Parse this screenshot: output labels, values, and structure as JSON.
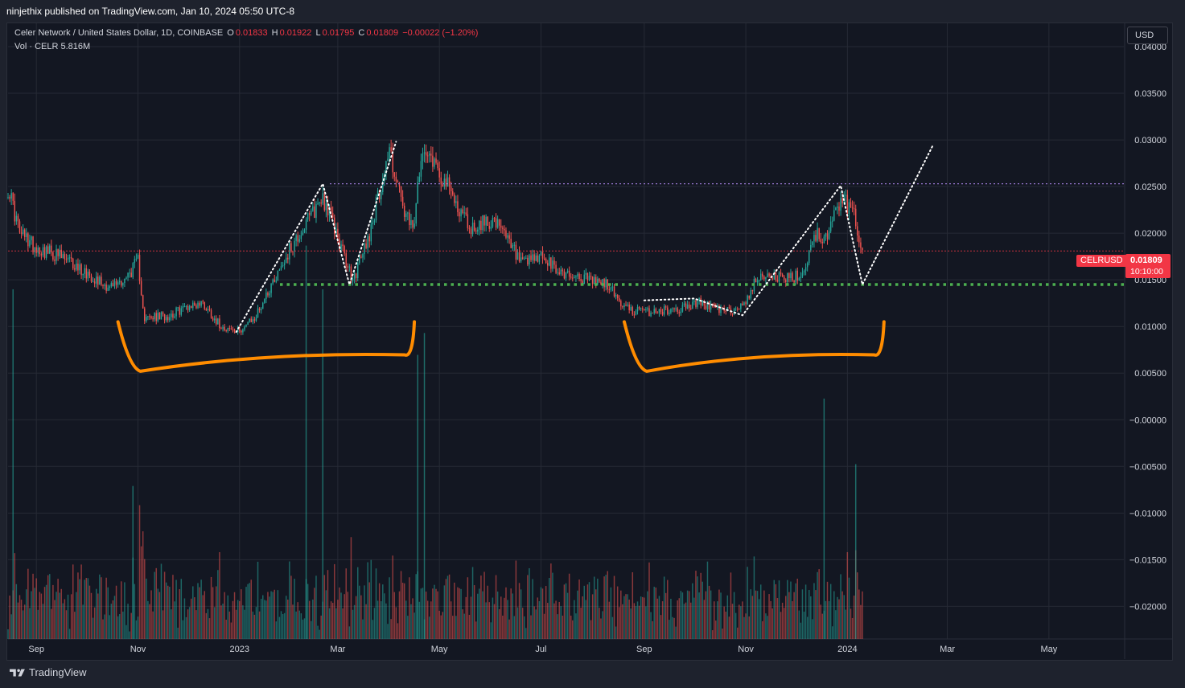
{
  "header": {
    "published": "ninjethix published on TradingView.com, Jan 10, 2024 05:50 UTC-8"
  },
  "legend": {
    "symbol_title": "Celer Network / United States Dollar, 1D, COINBASE",
    "o_label": "O",
    "o_value": "0.01833",
    "h_label": "H",
    "h_value": "0.01922",
    "l_label": "L",
    "l_value": "0.01795",
    "c_label": "C",
    "c_value": "0.01809",
    "change": "−0.00022 (−1.20%)",
    "vol_label": "Vol · CELR",
    "vol_value": "5.816M"
  },
  "currency_button": "USD",
  "ticker_tag": "CELRUSD",
  "price_tag": {
    "price": "0.01809",
    "countdown": "10:10:00"
  },
  "footer": {
    "brand": "TradingView"
  },
  "colors": {
    "up": "#26a69a",
    "down": "#ef5350",
    "support": "#4caf50",
    "resistance": "#9575cd",
    "current": "#f23645",
    "annotation": "#ff8c00"
  },
  "chart_data": {
    "type": "candlestick",
    "symbol": "CELRUSD",
    "exchange": "COINBASE",
    "interval": "1D",
    "y_ticks": [
      "0.04000",
      "0.03500",
      "0.03000",
      "0.02500",
      "0.02000",
      "0.01500",
      "0.01000",
      "0.00500",
      "−0.00000",
      "−0.00500",
      "−0.01000",
      "−0.01500",
      "−0.02000"
    ],
    "x_ticks": [
      "Sep",
      "Nov",
      "2023",
      "Mar",
      "May",
      "Jul",
      "Sep",
      "Nov",
      "2024",
      "Mar",
      "May"
    ],
    "ylim": [
      -0.0235,
      0.0425
    ],
    "time_axis": [
      "2022-08-15",
      "2024-06-15"
    ],
    "current_price": 0.01809,
    "support_level": 0.0145,
    "resistance_level": 0.0253,
    "close_path": [
      [
        "2022-08-15",
        0.025
      ],
      [
        "2022-08-22",
        0.02
      ],
      [
        "2022-09-01",
        0.0185
      ],
      [
        "2022-09-15",
        0.0175
      ],
      [
        "2022-10-01",
        0.0158
      ],
      [
        "2022-10-15",
        0.0142
      ],
      [
        "2022-10-25",
        0.0152
      ],
      [
        "2022-11-01",
        0.017
      ],
      [
        "2022-11-05",
        0.0108
      ],
      [
        "2022-11-20",
        0.0112
      ],
      [
        "2022-12-01",
        0.0122
      ],
      [
        "2022-12-10",
        0.0125
      ],
      [
        "2022-12-20",
        0.0102
      ],
      [
        "2022-12-30",
        0.0094
      ],
      [
        "2023-01-10",
        0.0108
      ],
      [
        "2023-01-20",
        0.0145
      ],
      [
        "2023-02-01",
        0.0185
      ],
      [
        "2023-02-10",
        0.021
      ],
      [
        "2023-02-20",
        0.024
      ],
      [
        "2023-02-28",
        0.02
      ],
      [
        "2023-03-10",
        0.0148
      ],
      [
        "2023-03-20",
        0.02
      ],
      [
        "2023-04-01",
        0.029
      ],
      [
        "2023-04-10",
        0.022
      ],
      [
        "2023-04-15",
        0.0202
      ],
      [
        "2023-04-22",
        0.03
      ],
      [
        "2023-04-30",
        0.027
      ],
      [
        "2023-05-10",
        0.0235
      ],
      [
        "2023-05-20",
        0.0205
      ],
      [
        "2023-06-01",
        0.0215
      ],
      [
        "2023-06-10",
        0.0195
      ],
      [
        "2023-06-20",
        0.0165
      ],
      [
        "2023-07-01",
        0.0175
      ],
      [
        "2023-07-10",
        0.016
      ],
      [
        "2023-07-25",
        0.0152
      ],
      [
        "2023-08-10",
        0.0145
      ],
      [
        "2023-08-20",
        0.012
      ],
      [
        "2023-09-01",
        0.0115
      ],
      [
        "2023-09-20",
        0.0118
      ],
      [
        "2023-10-05",
        0.0126
      ],
      [
        "2023-10-20",
        0.0115
      ],
      [
        "2023-10-30",
        0.0122
      ],
      [
        "2023-11-10",
        0.0158
      ],
      [
        "2023-11-25",
        0.015
      ],
      [
        "2023-12-05",
        0.0155
      ],
      [
        "2023-12-12",
        0.02
      ],
      [
        "2023-12-20",
        0.0195
      ],
      [
        "2023-12-28",
        0.0238
      ],
      [
        "2024-01-05",
        0.022
      ],
      [
        "2024-01-10",
        0.0181
      ]
    ],
    "volume_scale_max": 0.0175,
    "volume_spikes": [
      [
        "2022-08-18",
        0.016
      ],
      [
        "2022-10-29",
        0.007
      ],
      [
        "2023-02-10",
        0.018
      ],
      [
        "2023-02-20",
        0.016
      ],
      [
        "2023-04-18",
        0.013
      ],
      [
        "2023-04-22",
        0.014
      ],
      [
        "2023-12-18",
        0.011
      ],
      [
        "2024-01-06",
        0.008
      ]
    ],
    "drawings": [
      {
        "type": "bracket",
        "from": "2022-10-20",
        "to": "2023-04-15"
      },
      {
        "type": "bracket",
        "from": "2023-08-20",
        "to": "2024-01-22"
      },
      {
        "type": "dotted_path",
        "points": [
          [
            "2022-12-30",
            0.0094
          ],
          [
            "2023-02-20",
            0.0253
          ],
          [
            "2023-03-08",
            0.0145
          ],
          [
            "2023-04-05",
            0.0298
          ]
        ]
      },
      {
        "type": "dotted_path",
        "points": [
          [
            "2023-09-01",
            0.0128
          ],
          [
            "2023-10-01",
            0.013
          ],
          [
            "2023-10-30",
            0.0112
          ],
          [
            "2023-12-28",
            0.0251
          ],
          [
            "2024-01-10",
            0.0145
          ],
          [
            "2024-02-21",
            0.0293
          ]
        ]
      }
    ]
  }
}
